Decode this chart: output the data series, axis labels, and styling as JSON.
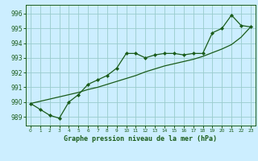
{
  "title": "Graphe pression niveau de la mer (hPa)",
  "background_color": "#cceeff",
  "grid_color": "#99cccc",
  "line_color": "#1a5c1a",
  "xlim": [
    -0.5,
    23.5
  ],
  "ylim": [
    988.4,
    996.6
  ],
  "yticks": [
    989,
    990,
    991,
    992,
    993,
    994,
    995,
    996
  ],
  "xticks": [
    0,
    1,
    2,
    3,
    4,
    5,
    6,
    7,
    8,
    9,
    10,
    11,
    12,
    13,
    14,
    15,
    16,
    17,
    18,
    19,
    20,
    21,
    22,
    23
  ],
  "series1": [
    989.9,
    989.5,
    989.1,
    988.9,
    990.0,
    990.5,
    991.2,
    991.5,
    991.8,
    992.3,
    993.3,
    993.3,
    993.0,
    993.2,
    993.3,
    993.3,
    993.2,
    993.3,
    993.3,
    994.7,
    995.0,
    995.9,
    995.2,
    995.1
  ],
  "trend": [
    989.9,
    990.05,
    990.2,
    990.35,
    990.5,
    990.65,
    990.85,
    991.0,
    991.2,
    991.4,
    991.6,
    991.8,
    992.05,
    992.25,
    992.45,
    992.6,
    992.75,
    992.9,
    993.1,
    993.35,
    993.6,
    993.9,
    994.4,
    995.1
  ],
  "xlabel_fontsize": 6.0,
  "ytick_fontsize": 5.5,
  "xtick_fontsize": 4.2
}
